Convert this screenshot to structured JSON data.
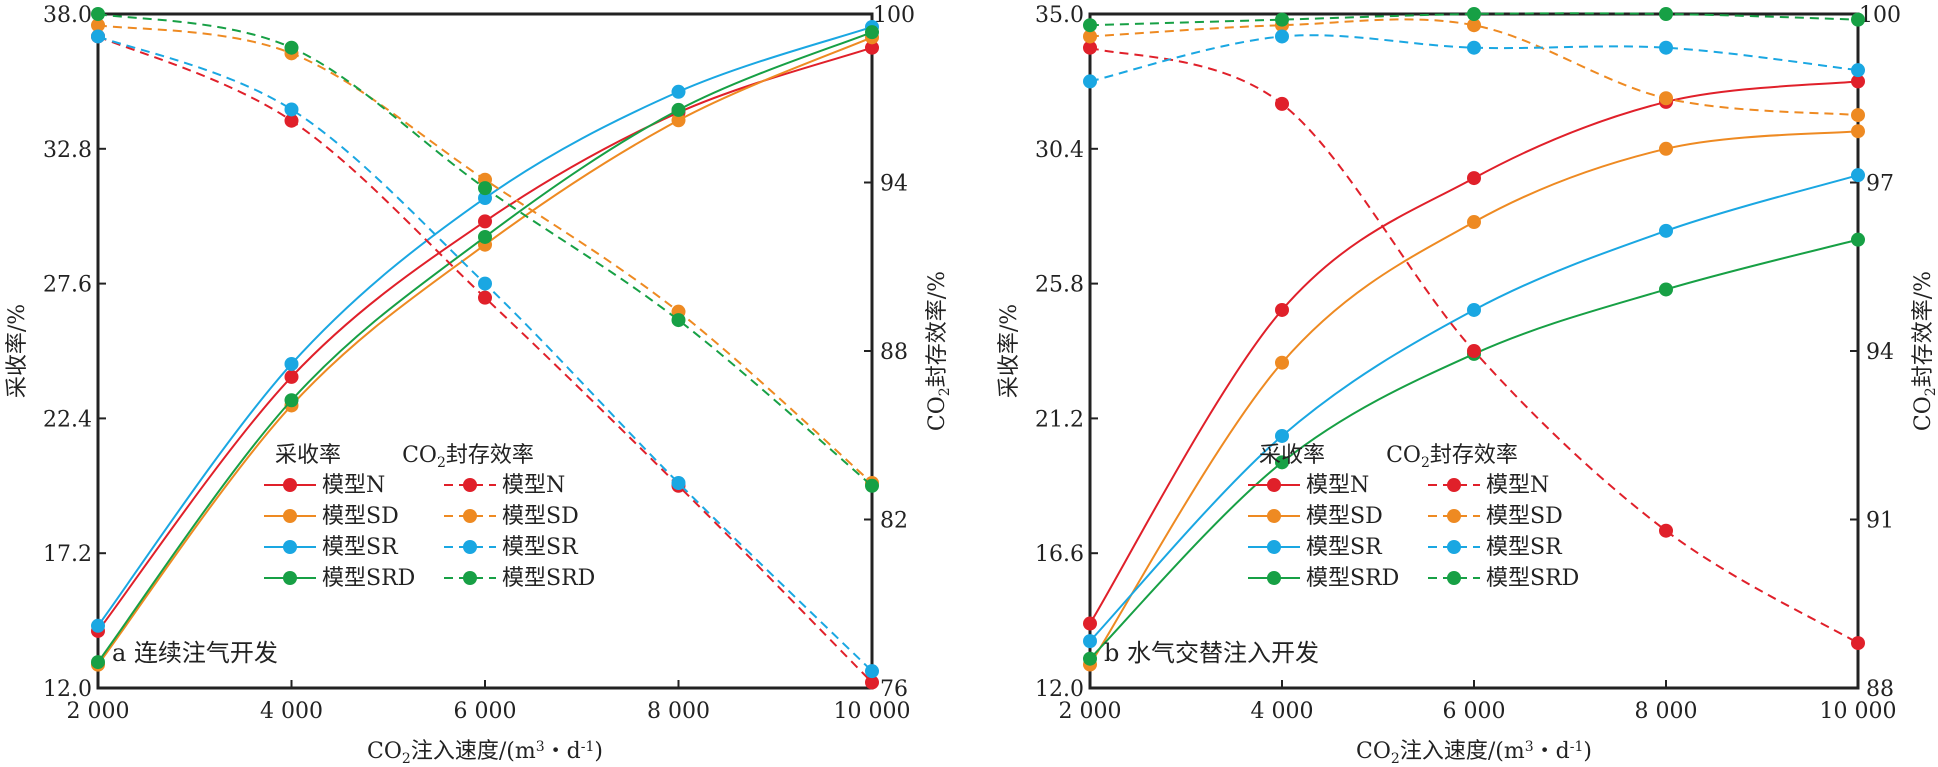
{
  "chart_data": [
    {
      "type": "line",
      "panel_label": "a 连续注气开发",
      "x": [
        2000,
        4000,
        6000,
        8000,
        10000
      ],
      "x_tick_labels": [
        "2 000",
        "4 000",
        "6 000",
        "8 000",
        "10 000"
      ],
      "xlabel": "CO₂注入速度/(m³・d⁻¹)",
      "xlim": [
        2000,
        10000
      ],
      "ylabel_left": "采收率/%",
      "ylim_left": [
        12.0,
        38.0
      ],
      "y_left_ticks": [
        "12.0",
        "17.2",
        "22.4",
        "27.6",
        "32.8",
        "38.0"
      ],
      "ylabel_right": "CO₂封存效率/%",
      "ylim_right": [
        76,
        100
      ],
      "y_right_ticks": [
        "76",
        "82",
        "88",
        "94",
        "100"
      ],
      "legend_titles": [
        "采收率",
        "CO₂封存效率"
      ],
      "legend_position": "lower-center",
      "grid": false,
      "series": [
        {
          "name": "模型N",
          "axis": "left",
          "style": "solid",
          "color": "#e0202a",
          "values": [
            14.2,
            24.0,
            30.0,
            34.2,
            36.7
          ]
        },
        {
          "name": "模型SD",
          "axis": "left",
          "style": "solid",
          "color": "#ee8a22",
          "values": [
            12.9,
            22.9,
            29.1,
            33.9,
            37.1
          ]
        },
        {
          "name": "模型SR",
          "axis": "left",
          "style": "solid",
          "color": "#1aa7e2",
          "values": [
            14.4,
            24.5,
            30.9,
            35.0,
            37.5
          ]
        },
        {
          "name": "模型SRD",
          "axis": "left",
          "style": "solid",
          "color": "#17a045",
          "values": [
            13.0,
            23.1,
            29.4,
            34.3,
            37.3
          ]
        },
        {
          "name": "模型N",
          "axis": "right",
          "style": "dashed",
          "color": "#e0202a",
          "values": [
            99.2,
            96.2,
            89.9,
            83.2,
            76.2
          ]
        },
        {
          "name": "模型SD",
          "axis": "right",
          "style": "dashed",
          "color": "#ee8a22",
          "values": [
            99.6,
            98.6,
            94.1,
            89.4,
            83.3
          ]
        },
        {
          "name": "模型SR",
          "axis": "right",
          "style": "dashed",
          "color": "#1aa7e2",
          "values": [
            99.2,
            96.6,
            90.4,
            83.3,
            76.6
          ]
        },
        {
          "name": "模型SRD",
          "axis": "right",
          "style": "dashed",
          "color": "#17a045",
          "values": [
            100.0,
            98.8,
            93.8,
            89.1,
            83.2
          ]
        }
      ]
    },
    {
      "type": "line",
      "panel_label": "b 水气交替注入开发",
      "x": [
        2000,
        4000,
        6000,
        8000,
        10000
      ],
      "x_tick_labels": [
        "2 000",
        "4 000",
        "6 000",
        "8 000",
        "10 000"
      ],
      "xlabel": "CO₂注入速度/(m³・d⁻¹)",
      "xlim": [
        2000,
        10000
      ],
      "ylabel_left": "采收率/%",
      "ylim_left": [
        12.0,
        35.0
      ],
      "y_left_ticks": [
        "12.0",
        "16.6",
        "21.2",
        "25.8",
        "30.4",
        "35.0"
      ],
      "ylabel_right": "CO₂封存效率/%",
      "ylim_right": [
        88,
        100
      ],
      "y_right_ticks": [
        "88",
        "91",
        "94",
        "97",
        "100"
      ],
      "legend_titles": [
        "采收率",
        "CO₂封存效率"
      ],
      "legend_position": "lower-center",
      "grid": false,
      "series": [
        {
          "name": "模型N",
          "axis": "left",
          "style": "solid",
          "color": "#e0202a",
          "values": [
            14.2,
            24.9,
            29.4,
            32.0,
            32.7
          ]
        },
        {
          "name": "模型SD",
          "axis": "left",
          "style": "solid",
          "color": "#ee8a22",
          "values": [
            12.8,
            23.1,
            27.9,
            30.4,
            31.0
          ]
        },
        {
          "name": "模型SR",
          "axis": "left",
          "style": "solid",
          "color": "#1aa7e2",
          "values": [
            13.6,
            20.6,
            24.9,
            27.6,
            29.5
          ]
        },
        {
          "name": "模型SRD",
          "axis": "left",
          "style": "solid",
          "color": "#17a045",
          "values": [
            13.0,
            19.7,
            23.4,
            25.6,
            27.3
          ]
        },
        {
          "name": "模型N",
          "axis": "right",
          "style": "dashed",
          "color": "#e0202a",
          "values": [
            99.4,
            98.4,
            94.0,
            90.8,
            88.8
          ]
        },
        {
          "name": "模型SD",
          "axis": "right",
          "style": "dashed",
          "color": "#ee8a22",
          "values": [
            99.6,
            99.8,
            99.8,
            98.5,
            98.2
          ]
        },
        {
          "name": "模型SR",
          "axis": "right",
          "style": "dashed",
          "color": "#1aa7e2",
          "values": [
            98.8,
            99.6,
            99.4,
            99.4,
            99.0
          ]
        },
        {
          "name": "模型SRD",
          "axis": "right",
          "style": "dashed",
          "color": "#17a045",
          "values": [
            99.8,
            99.9,
            100.0,
            100.0,
            99.9
          ]
        }
      ]
    }
  ]
}
